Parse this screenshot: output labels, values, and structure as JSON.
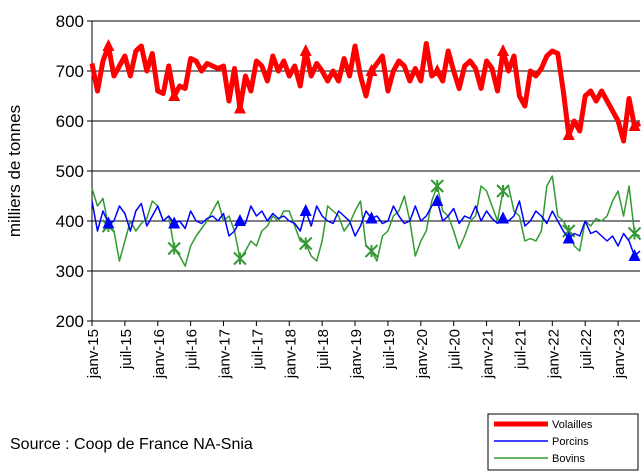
{
  "chart_data": {
    "type": "line",
    "y_label": "milliers de tonnes",
    "source": "Source : Coop de France NA-Snia",
    "ylim": [
      200,
      800
    ],
    "yticks": [
      200,
      300,
      400,
      500,
      600,
      700,
      800
    ],
    "grid": true,
    "legend": "bottom-right",
    "categories": [
      "janv-15",
      null,
      null,
      null,
      null,
      null,
      "juil-15",
      null,
      null,
      null,
      null,
      null,
      "janv-16",
      null,
      null,
      null,
      null,
      null,
      "juil-16",
      null,
      null,
      null,
      null,
      null,
      "janv-17",
      null,
      null,
      null,
      null,
      null,
      "juil-17",
      null,
      null,
      null,
      null,
      null,
      "janv-18",
      null,
      null,
      null,
      null,
      null,
      "juil-18",
      null,
      null,
      null,
      null,
      null,
      "janv-19",
      null,
      null,
      null,
      null,
      null,
      "juil-19",
      null,
      null,
      null,
      null,
      null,
      "janv-20",
      null,
      null,
      null,
      null,
      null,
      "juil-20",
      null,
      null,
      null,
      null,
      null,
      "janv-21",
      null,
      null,
      null,
      null,
      null,
      "juil-21",
      null,
      null,
      null,
      null,
      null,
      "janv-22",
      null,
      null,
      null,
      null,
      null,
      "juil-22",
      null,
      null,
      null,
      null,
      null,
      "janv-23",
      null,
      null,
      null,
      null
    ],
    "series": [
      {
        "name": "Volailles",
        "color": "#ff0000",
        "linewidth": 5,
        "marker": "triangle",
        "values": [
          715,
          660,
          720,
          750,
          690,
          710,
          730,
          690,
          740,
          750,
          700,
          735,
          660,
          655,
          710,
          650,
          670,
          665,
          725,
          720,
          700,
          715,
          710,
          705,
          710,
          640,
          705,
          625,
          690,
          660,
          720,
          710,
          680,
          730,
          700,
          720,
          690,
          710,
          670,
          740,
          690,
          715,
          700,
          680,
          700,
          680,
          725,
          690,
          750,
          690,
          650,
          700,
          715,
          730,
          660,
          700,
          720,
          710,
          680,
          705,
          680,
          755,
          690,
          700,
          680,
          740,
          700,
          665,
          710,
          720,
          705,
          665,
          720,
          705,
          660,
          740,
          700,
          730,
          650,
          630,
          700,
          690,
          705,
          730,
          740,
          735,
          660,
          572,
          600,
          580,
          650,
          660,
          640,
          660,
          640,
          620,
          600,
          560,
          645,
          590,
          595
        ]
      },
      {
        "name": "Porcins",
        "color": "#0000ff",
        "linewidth": 1.5,
        "marker": "triangle",
        "values": [
          440,
          380,
          420,
          395,
          400,
          430,
          415,
          380,
          420,
          435,
          390,
          410,
          430,
          400,
          410,
          395,
          400,
          385,
          420,
          400,
          395,
          405,
          410,
          400,
          415,
          370,
          380,
          400,
          395,
          430,
          410,
          420,
          400,
          415,
          405,
          410,
          400,
          395,
          380,
          420,
          390,
          430,
          410,
          400,
          395,
          420,
          410,
          400,
          370,
          390,
          420,
          405,
          410,
          395,
          400,
          430,
          410,
          395,
          400,
          430,
          400,
          410,
          430,
          440,
          400,
          410,
          425,
          395,
          410,
          405,
          430,
          400,
          420,
          405,
          395,
          405,
          400,
          410,
          440,
          390,
          400,
          420,
          410,
          395,
          420,
          400,
          380,
          365,
          375,
          370,
          400,
          375,
          380,
          370,
          360,
          370,
          350,
          375,
          360,
          330,
          340
        ]
      },
      {
        "name": "Bovins",
        "color": "#339933",
        "linewidth": 1.5,
        "marker": "x",
        "values": [
          465,
          430,
          445,
          390,
          380,
          320,
          360,
          400,
          380,
          395,
          405,
          440,
          430,
          400,
          410,
          345,
          330,
          310,
          350,
          370,
          385,
          400,
          420,
          440,
          400,
          410,
          380,
          325,
          340,
          360,
          350,
          380,
          390,
          410,
          400,
          420,
          420,
          390,
          360,
          355,
          330,
          320,
          360,
          430,
          420,
          410,
          380,
          395,
          420,
          440,
          350,
          340,
          320,
          370,
          380,
          410,
          420,
          450,
          400,
          330,
          360,
          380,
          440,
          470,
          420,
          410,
          380,
          345,
          370,
          400,
          410,
          470,
          460,
          430,
          400,
          460,
          470,
          420,
          410,
          360,
          365,
          360,
          380,
          470,
          490,
          410,
          400,
          380,
          350,
          340,
          400,
          390,
          405,
          400,
          410,
          440,
          460,
          410,
          470,
          375,
          370
        ]
      }
    ]
  }
}
